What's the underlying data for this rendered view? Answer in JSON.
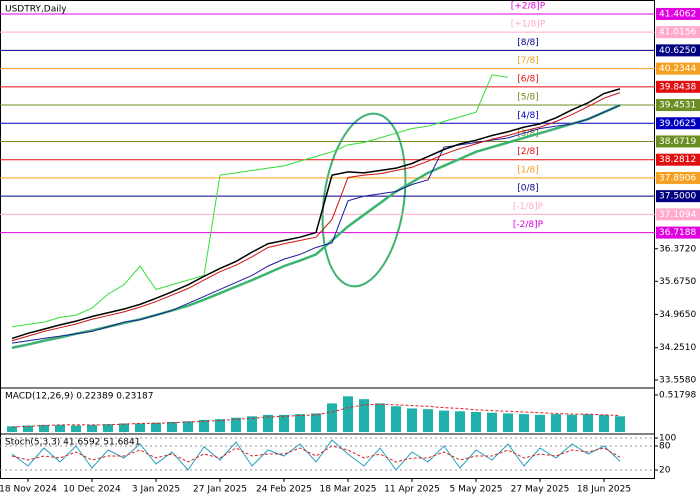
{
  "chart_data": [
    {
      "type": "line",
      "title": "USDTRY,Daily",
      "categories": [
        null,
        "18 Nov 2024",
        null,
        null,
        null,
        "10 Dec 2024",
        null,
        null,
        null,
        "3 Jan 2025",
        null,
        null,
        null,
        "27 Jan 2025",
        null,
        null,
        null,
        "24 Feb 2025",
        null,
        null,
        null,
        "18 Mar 2025",
        null,
        null,
        null,
        "11 Apr 2025",
        null,
        null,
        null,
        "5 May 2025",
        null,
        null,
        null,
        "27 May 2025",
        null,
        null,
        null,
        "18 Jun 2025",
        null
      ],
      "ylim": [
        33.387,
        41.598
      ],
      "yticks": [
        {
          "value": 36.372,
          "label": "36.3720"
        },
        {
          "value": 35.675,
          "label": "35.6750"
        },
        {
          "value": 34.965,
          "label": "34.9650"
        },
        {
          "value": 34.251,
          "label": "34.2510"
        },
        {
          "value": 33.558,
          "label": "33.5580"
        }
      ],
      "murrey": [
        {
          "name": "[+2/8]P",
          "value": 41.4062,
          "label": "41.4062",
          "color": "#e000e0"
        },
        {
          "name": "[+1/8]P",
          "value": 41.0156,
          "label": "41.0156",
          "color": "#ffaacc"
        },
        {
          "name": "[8/8]",
          "value": 40.625,
          "label": "40.6250",
          "color": "#000080"
        },
        {
          "name": "[7/8]",
          "value": 40.2344,
          "label": "40.2344",
          "color": "#f5a020"
        },
        {
          "name": "[6/8]",
          "value": 39.8438,
          "label": "39.8438",
          "color": "#e01010"
        },
        {
          "name": "[5/8]",
          "value": 39.4531,
          "label": "39.4531",
          "color": "#6b8e23"
        },
        {
          "name": "[4/8]",
          "value": 39.0625,
          "label": "39.0625",
          "color": "#0000c0"
        },
        {
          "name": "[3/8]",
          "value": 38.6719,
          "label": "38.6719",
          "color": "#6b8e23"
        },
        {
          "name": "[2/8]",
          "value": 38.2812,
          "label": "38.2812",
          "color": "#e01010"
        },
        {
          "name": "[1/8]",
          "value": 37.8906,
          "label": "37.8906",
          "color": "#f5a020"
        },
        {
          "name": "[0/8]",
          "value": 37.5,
          "label": "37.5000",
          "color": "#000080"
        },
        {
          "name": "[-1/8]P",
          "value": 37.1094,
          "label": "37.1094",
          "color": "#ffaacc"
        },
        {
          "name": "[-2/8]P",
          "value": 36.7188,
          "label": "36.7188",
          "color": "#e000e0"
        }
      ],
      "series": [
        {
          "color": "#33dd33",
          "width": 1,
          "values": [
            34.7,
            34.75,
            34.8,
            34.9,
            34.95,
            35.1,
            35.4,
            35.6,
            36.0,
            35.5,
            35.6,
            35.7,
            35.8,
            37.95,
            38.0,
            38.05,
            38.1,
            38.15,
            38.25,
            38.35,
            38.45,
            38.6,
            38.65,
            38.75,
            38.85,
            38.95,
            39.0,
            39.1,
            39.2,
            39.3,
            40.1,
            40.05,
            null,
            null,
            null,
            null,
            null,
            null,
            null
          ]
        },
        {
          "color": "#3cb371",
          "width": 2.5,
          "values": [
            34.25,
            34.32,
            34.4,
            34.47,
            34.55,
            34.62,
            34.7,
            34.78,
            34.86,
            34.95,
            35.05,
            35.15,
            35.28,
            35.42,
            35.56,
            35.7,
            35.85,
            36.0,
            36.12,
            36.25,
            36.55,
            36.85,
            37.1,
            37.35,
            37.6,
            37.8,
            38.0,
            38.15,
            38.3,
            38.45,
            38.55,
            38.65,
            38.75,
            38.85,
            38.95,
            39.05,
            39.15,
            39.3,
            39.45
          ]
        },
        {
          "color": "#1a1aa0",
          "width": 1,
          "values": [
            34.35,
            34.4,
            34.45,
            34.5,
            34.55,
            34.6,
            34.7,
            34.8,
            34.85,
            34.95,
            35.05,
            35.2,
            35.35,
            35.5,
            35.65,
            35.8,
            36.0,
            36.15,
            36.25,
            36.4,
            36.5,
            37.4,
            37.5,
            37.55,
            37.6,
            37.75,
            37.85,
            38.55,
            38.6,
            38.65,
            38.7,
            38.75,
            38.85,
            38.95,
            39.0,
            39.05,
            39.15,
            39.3,
            39.45
          ]
        },
        {
          "color": "#cc1111",
          "width": 1,
          "values": [
            34.4,
            34.5,
            34.6,
            34.68,
            34.76,
            34.86,
            34.94,
            35.02,
            35.12,
            35.24,
            35.38,
            35.52,
            35.7,
            35.88,
            36.02,
            36.2,
            36.4,
            36.48,
            36.55,
            36.62,
            37.0,
            37.9,
            37.95,
            37.98,
            38.05,
            38.12,
            38.25,
            38.4,
            38.52,
            38.62,
            38.72,
            38.8,
            38.9,
            38.98,
            39.1,
            39.25,
            39.42,
            39.6,
            39.72
          ]
        },
        {
          "color": "#000000",
          "width": 1.5,
          "values": [
            34.45,
            34.56,
            34.65,
            34.74,
            34.82,
            34.92,
            35.0,
            35.08,
            35.18,
            35.31,
            35.45,
            35.6,
            35.78,
            35.95,
            36.1,
            36.3,
            36.48,
            36.55,
            36.62,
            36.72,
            37.95,
            38.02,
            38.0,
            38.05,
            38.1,
            38.2,
            38.35,
            38.5,
            38.62,
            38.7,
            38.8,
            38.88,
            38.98,
            39.05,
            39.18,
            39.35,
            39.5,
            39.7,
            39.8
          ]
        }
      ]
    },
    {
      "type": "bar",
      "title": "MACD(12,26,9) 0.22389 0.23187",
      "ylim": [
        0,
        0.588
      ],
      "yticks": [
        0.51798
      ],
      "color": "#20b2aa",
      "values": [
        0.08,
        0.09,
        0.1,
        0.1,
        0.09,
        0.1,
        0.11,
        0.12,
        0.12,
        0.13,
        0.14,
        0.15,
        0.17,
        0.18,
        0.2,
        0.22,
        0.24,
        0.24,
        0.25,
        0.26,
        0.4,
        0.5,
        0.46,
        0.4,
        0.36,
        0.33,
        0.32,
        0.3,
        0.29,
        0.28,
        0.27,
        0.26,
        0.25,
        0.24,
        0.25,
        0.24,
        0.25,
        0.24,
        0.22
      ],
      "series": [
        {
          "color": "#dd2222",
          "dash": true,
          "width": 1,
          "values": [
            0.07,
            0.08,
            0.09,
            0.1,
            0.1,
            0.1,
            0.1,
            0.11,
            0.12,
            0.12,
            0.13,
            0.14,
            0.15,
            0.16,
            0.18,
            0.19,
            0.21,
            0.22,
            0.23,
            0.24,
            0.28,
            0.34,
            0.38,
            0.39,
            0.38,
            0.37,
            0.36,
            0.34,
            0.33,
            0.31,
            0.3,
            0.29,
            0.28,
            0.27,
            0.26,
            0.25,
            0.25,
            0.24,
            0.23
          ]
        }
      ]
    },
    {
      "type": "line",
      "title": "Stoch(5,3,3) 41.6592 51.6841",
      "ylim": [
        0,
        100
      ],
      "yticks": [
        100,
        80,
        20
      ],
      "series": [
        {
          "color": "#20a0c0",
          "width": 1,
          "values": [
            60,
            30,
            75,
            40,
            80,
            25,
            70,
            50,
            85,
            35,
            65,
            20,
            78,
            45,
            90,
            30,
            70,
            55,
            85,
            40,
            95,
            60,
            30,
            75,
            20,
            65,
            40,
            80,
            25,
            70,
            45,
            85,
            30,
            75,
            50,
            85,
            60,
            80,
            42
          ]
        },
        {
          "color": "#dd2222",
          "dash": true,
          "width": 1,
          "values": [
            55,
            45,
            55,
            50,
            65,
            45,
            55,
            55,
            70,
            50,
            60,
            40,
            60,
            50,
            75,
            55,
            60,
            60,
            75,
            55,
            80,
            70,
            50,
            60,
            40,
            50,
            50,
            65,
            45,
            55,
            55,
            70,
            50,
            60,
            55,
            70,
            65,
            75,
            52
          ]
        }
      ]
    }
  ]
}
